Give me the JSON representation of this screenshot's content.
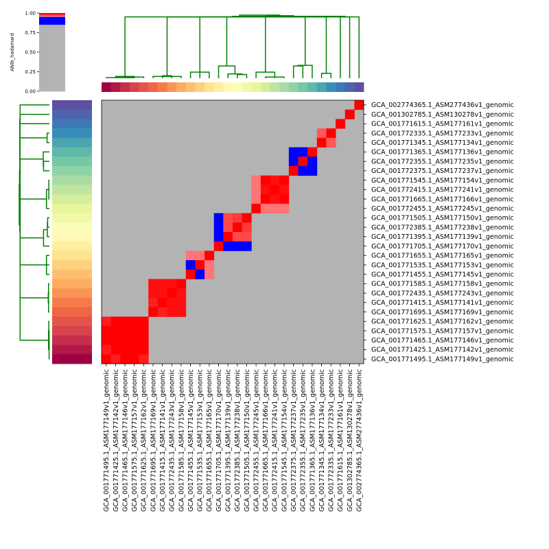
{
  "chart_data": {
    "type": "heatmap",
    "title": "",
    "colorbar": {
      "label": "ANIb_hadamard",
      "ticks": [
        "0.00",
        "0.25",
        "0.50",
        "0.75",
        "1.00"
      ],
      "range": [
        0,
        1
      ]
    },
    "labels": [
      "GCA_001771495.1_ASM177149v1_genomic",
      "GCA_001771425.1_ASM177142v1_genomic",
      "GCA_001771465.1_ASM177146v1_genomic",
      "GCA_001771575.1_ASM177157v1_genomic",
      "GCA_001771625.1_ASM177162v1_genomic",
      "GCA_001771695.1_ASM177169v1_genomic",
      "GCA_001771415.1_ASM177141v1_genomic",
      "GCA_001772435.1_ASM177243v1_genomic",
      "GCA_001771585.1_ASM177158v1_genomic",
      "GCA_001771455.1_ASM177145v1_genomic",
      "GCA_001771535.1_ASM177153v1_genomic",
      "GCA_001771655.1_ASM177165v1_genomic",
      "GCA_001771705.1_ASM177170v1_genomic",
      "GCA_001771395.1_ASM177139v1_genomic",
      "GCA_001772385.1_ASM177238v1_genomic",
      "GCA_001771505.1_ASM177150v1_genomic",
      "GCA_001772455.1_ASM177245v1_genomic",
      "GCA_001772415.1_ASM177241v1_genomic",
      "GCA_001771665.1_ASM177166v1_genomic",
      "GCA_001771545.1_ASM177154v1_genomic",
      "GCA_001772375.1_ASM177237v1_genomic",
      "GCA_001772355.1_ASM177235v1_genomic",
      "GCA_001771365.1_ASM177136v1_genomic",
      "GCA_001771345.1_ASM177134v1_genomic",
      "GCA_001772335.1_ASM177233v1_genomic",
      "GCA_001771615.1_ASM177161v1_genomic",
      "GCA_001302785.1_ASM130278v1_genomic",
      "GCA_002774365.1_ASM277436v1_genomic"
    ],
    "row_order_top_to_bottom": [
      27,
      26,
      25,
      24,
      23,
      22,
      21,
      20,
      19,
      17,
      18,
      16,
      15,
      14,
      13,
      12,
      11,
      10,
      9,
      8,
      7,
      6,
      5,
      4,
      3,
      2,
      1,
      0
    ],
    "background_value": 0.0,
    "blocks": [
      {
        "indices": [
          0,
          1,
          2,
          3,
          4
        ],
        "value": 0.99
      },
      {
        "indices": [
          5,
          6,
          7,
          8
        ],
        "value": 0.97
      },
      {
        "indices": [
          9
        ],
        "value": 1.0
      },
      {
        "indices": [
          10,
          11
        ],
        "value": 0.93
      },
      {
        "indices": [
          12
        ],
        "value": 1.0
      },
      {
        "indices": [
          13,
          14,
          15
        ],
        "value": 0.95
      },
      {
        "indices": [
          16
        ],
        "value": 1.0
      },
      {
        "indices": [
          17,
          18,
          19
        ],
        "value": 0.98
      },
      {
        "indices": [
          20
        ],
        "value": 1.0
      },
      {
        "indices": [
          21,
          22
        ],
        "value": 0.99
      },
      {
        "indices": [
          23,
          24
        ],
        "value": 0.97
      },
      {
        "indices": [
          25
        ],
        "value": 1.0
      },
      {
        "indices": [
          26
        ],
        "value": 1.0
      },
      {
        "indices": [
          27
        ],
        "value": 1.0
      }
    ],
    "cell_overrides": [
      {
        "i": 0,
        "j": 1,
        "value": 0.96
      },
      {
        "i": 0,
        "j": 4,
        "value": 0.96
      },
      {
        "i": 5,
        "j": 6,
        "value": 0.96
      },
      {
        "i": 5,
        "j": 7,
        "value": 0.97
      },
      {
        "i": 5,
        "j": 8,
        "value": 0.97
      },
      {
        "i": 10,
        "j": 11,
        "value": 0.9
      },
      {
        "i": 10,
        "j": 9,
        "value": 0.8
      },
      {
        "i": 11,
        "j": 9,
        "value": 0.9
      },
      {
        "i": 13,
        "j": 14,
        "value": 0.93
      },
      {
        "i": 13,
        "j": 15,
        "value": 0.93
      },
      {
        "i": 14,
        "j": 15,
        "value": 0.94
      },
      {
        "i": 13,
        "j": 12,
        "value": 0.8
      },
      {
        "i": 14,
        "j": 12,
        "value": 0.8
      },
      {
        "i": 15,
        "j": 12,
        "value": 0.8
      },
      {
        "i": 16,
        "j": 17,
        "value": 0.9
      },
      {
        "i": 16,
        "j": 18,
        "value": 0.9
      },
      {
        "i": 16,
        "j": 19,
        "value": 0.9
      },
      {
        "i": 17,
        "j": 18,
        "value": 0.97
      },
      {
        "i": 17,
        "j": 19,
        "value": 0.97
      },
      {
        "i": 20,
        "j": 21,
        "value": 0.8
      },
      {
        "i": 20,
        "j": 22,
        "value": 0.8
      },
      {
        "i": 21,
        "j": 22,
        "value": 0.8
      },
      {
        "i": 23,
        "j": 24,
        "value": 0.92
      }
    ],
    "dendrogram_color": "#008000",
    "colors": {
      "background": "#b3b3b3",
      "high": "#ff0000",
      "low": "#0000ff",
      "frame": "#000000"
    }
  }
}
